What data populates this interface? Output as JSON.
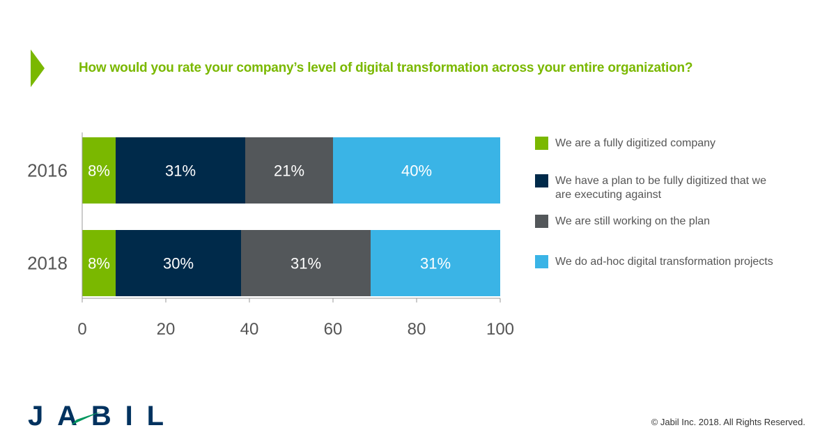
{
  "header": {
    "title": "How would you rate your company’s level of digital transformation across your entire organization?"
  },
  "chart_data": {
    "type": "bar",
    "orientation": "horizontal",
    "stacked": true,
    "categories": [
      "2016",
      "2018"
    ],
    "series": [
      {
        "name": "We are a fully digitized company",
        "color": "#7ab800",
        "values": [
          8,
          8
        ],
        "labels": [
          "8%",
          "8%"
        ]
      },
      {
        "name": "We have a plan to be fully digitized that we are executing against",
        "color": "#002a4a",
        "values": [
          31,
          30
        ],
        "labels": [
          "31%",
          "30%"
        ]
      },
      {
        "name": "We are still working on the plan",
        "color": "#53575a",
        "values": [
          21,
          31
        ],
        "labels": [
          "21%",
          "31%"
        ]
      },
      {
        "name": "We do ad-hoc digital transformation projects",
        "color": "#3ab4e6",
        "values": [
          40,
          31
        ],
        "labels": [
          "40%",
          "31%"
        ]
      }
    ],
    "xlim": [
      0,
      100
    ],
    "xticks": [
      "0",
      "20",
      "40",
      "60",
      "80",
      "100"
    ],
    "legend": "right",
    "grid": false
  },
  "footer": {
    "logo": "JABIL",
    "copyright": "© Jabil Inc. 2018. All Rights Reserved."
  }
}
